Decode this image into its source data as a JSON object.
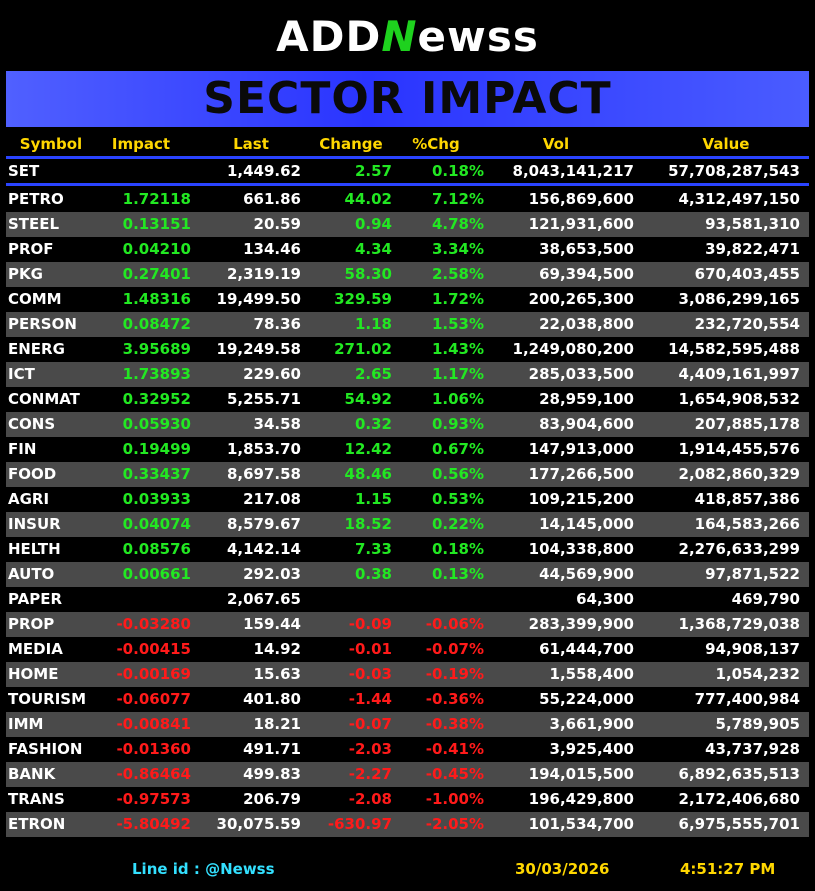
{
  "logo": {
    "prefix": "ADD",
    "n": "N",
    "suffix": "ewss"
  },
  "banner_title": "SECTOR IMPACT",
  "headers": {
    "symbol": "Symbol",
    "impact": "Impact",
    "last": "Last",
    "change": "Change",
    "pct": "%Chg",
    "vol": "Vol",
    "value": "Value"
  },
  "index_row": {
    "symbol": "SET",
    "impact": "",
    "last": "1,449.62",
    "change": "2.57",
    "pct": "0.18%",
    "vol": "8,043,141,217",
    "value": "57,708,287,543"
  },
  "rows": [
    {
      "symbol": "PETRO",
      "impact": "1.72118",
      "last": "661.86",
      "change": "44.02",
      "pct": "7.12%",
      "vol": "156,869,600",
      "value": "4,312,497,150",
      "dir": "up"
    },
    {
      "symbol": "STEEL",
      "impact": "0.13151",
      "last": "20.59",
      "change": "0.94",
      "pct": "4.78%",
      "vol": "121,931,600",
      "value": "93,581,310",
      "dir": "up"
    },
    {
      "symbol": "PROF",
      "impact": "0.04210",
      "last": "134.46",
      "change": "4.34",
      "pct": "3.34%",
      "vol": "38,653,500",
      "value": "39,822,471",
      "dir": "up"
    },
    {
      "symbol": "PKG",
      "impact": "0.27401",
      "last": "2,319.19",
      "change": "58.30",
      "pct": "2.58%",
      "vol": "69,394,500",
      "value": "670,403,455",
      "dir": "up"
    },
    {
      "symbol": "COMM",
      "impact": "1.48316",
      "last": "19,499.50",
      "change": "329.59",
      "pct": "1.72%",
      "vol": "200,265,300",
      "value": "3,086,299,165",
      "dir": "up"
    },
    {
      "symbol": "PERSON",
      "impact": "0.08472",
      "last": "78.36",
      "change": "1.18",
      "pct": "1.53%",
      "vol": "22,038,800",
      "value": "232,720,554",
      "dir": "up"
    },
    {
      "symbol": "ENERG",
      "impact": "3.95689",
      "last": "19,249.58",
      "change": "271.02",
      "pct": "1.43%",
      "vol": "1,249,080,200",
      "value": "14,582,595,488",
      "dir": "up"
    },
    {
      "symbol": "ICT",
      "impact": "1.73893",
      "last": "229.60",
      "change": "2.65",
      "pct": "1.17%",
      "vol": "285,033,500",
      "value": "4,409,161,997",
      "dir": "up"
    },
    {
      "symbol": "CONMAT",
      "impact": "0.32952",
      "last": "5,255.71",
      "change": "54.92",
      "pct": "1.06%",
      "vol": "28,959,100",
      "value": "1,654,908,532",
      "dir": "up"
    },
    {
      "symbol": "CONS",
      "impact": "0.05930",
      "last": "34.58",
      "change": "0.32",
      "pct": "0.93%",
      "vol": "83,904,600",
      "value": "207,885,178",
      "dir": "up"
    },
    {
      "symbol": "FIN",
      "impact": "0.19499",
      "last": "1,853.70",
      "change": "12.42",
      "pct": "0.67%",
      "vol": "147,913,000",
      "value": "1,914,455,576",
      "dir": "up"
    },
    {
      "symbol": "FOOD",
      "impact": "0.33437",
      "last": "8,697.58",
      "change": "48.46",
      "pct": "0.56%",
      "vol": "177,266,500",
      "value": "2,082,860,329",
      "dir": "up"
    },
    {
      "symbol": "AGRI",
      "impact": "0.03933",
      "last": "217.08",
      "change": "1.15",
      "pct": "0.53%",
      "vol": "109,215,200",
      "value": "418,857,386",
      "dir": "up"
    },
    {
      "symbol": "INSUR",
      "impact": "0.04074",
      "last": "8,579.67",
      "change": "18.52",
      "pct": "0.22%",
      "vol": "14,145,000",
      "value": "164,583,266",
      "dir": "up"
    },
    {
      "symbol": "HELTH",
      "impact": "0.08576",
      "last": "4,142.14",
      "change": "7.33",
      "pct": "0.18%",
      "vol": "104,338,800",
      "value": "2,276,633,299",
      "dir": "up"
    },
    {
      "symbol": "AUTO",
      "impact": "0.00661",
      "last": "292.03",
      "change": "0.38",
      "pct": "0.13%",
      "vol": "44,569,900",
      "value": "97,871,522",
      "dir": "up"
    },
    {
      "symbol": "PAPER",
      "impact": "",
      "last": "2,067.65",
      "change": "",
      "pct": "",
      "vol": "64,300",
      "value": "469,790",
      "dir": "flat"
    },
    {
      "symbol": "PROP",
      "impact": "-0.03280",
      "last": "159.44",
      "change": "-0.09",
      "pct": "-0.06%",
      "vol": "283,399,900",
      "value": "1,368,729,038",
      "dir": "down"
    },
    {
      "symbol": "MEDIA",
      "impact": "-0.00415",
      "last": "14.92",
      "change": "-0.01",
      "pct": "-0.07%",
      "vol": "61,444,700",
      "value": "94,908,137",
      "dir": "down"
    },
    {
      "symbol": "HOME",
      "impact": "-0.00169",
      "last": "15.63",
      "change": "-0.03",
      "pct": "-0.19%",
      "vol": "1,558,400",
      "value": "1,054,232",
      "dir": "down"
    },
    {
      "symbol": "TOURISM",
      "impact": "-0.06077",
      "last": "401.80",
      "change": "-1.44",
      "pct": "-0.36%",
      "vol": "55,224,000",
      "value": "777,400,984",
      "dir": "down"
    },
    {
      "symbol": "IMM",
      "impact": "-0.00841",
      "last": "18.21",
      "change": "-0.07",
      "pct": "-0.38%",
      "vol": "3,661,900",
      "value": "5,789,905",
      "dir": "down"
    },
    {
      "symbol": "FASHION",
      "impact": "-0.01360",
      "last": "491.71",
      "change": "-2.03",
      "pct": "-0.41%",
      "vol": "3,925,400",
      "value": "43,737,928",
      "dir": "down"
    },
    {
      "symbol": "BANK",
      "impact": "-0.86464",
      "last": "499.83",
      "change": "-2.27",
      "pct": "-0.45%",
      "vol": "194,015,500",
      "value": "6,892,635,513",
      "dir": "down"
    },
    {
      "symbol": "TRANS",
      "impact": "-0.97573",
      "last": "206.79",
      "change": "-2.08",
      "pct": "-1.00%",
      "vol": "196,429,800",
      "value": "2,172,406,680",
      "dir": "down"
    },
    {
      "symbol": "ETRON",
      "impact": "-5.80492",
      "last": "30,075.59",
      "change": "-630.97",
      "pct": "-2.05%",
      "vol": "101,534,700",
      "value": "6,975,555,701",
      "dir": "down"
    }
  ],
  "footer": {
    "line_id": "Line id  : @Newss",
    "date": "30/03/2026",
    "time": "4:51:27 PM"
  },
  "colors": {
    "up": "#22e822",
    "down": "#ff1a1a",
    "header": "#ffd700",
    "banner": "#2a34ff",
    "footer_line": "#33e0ff"
  }
}
